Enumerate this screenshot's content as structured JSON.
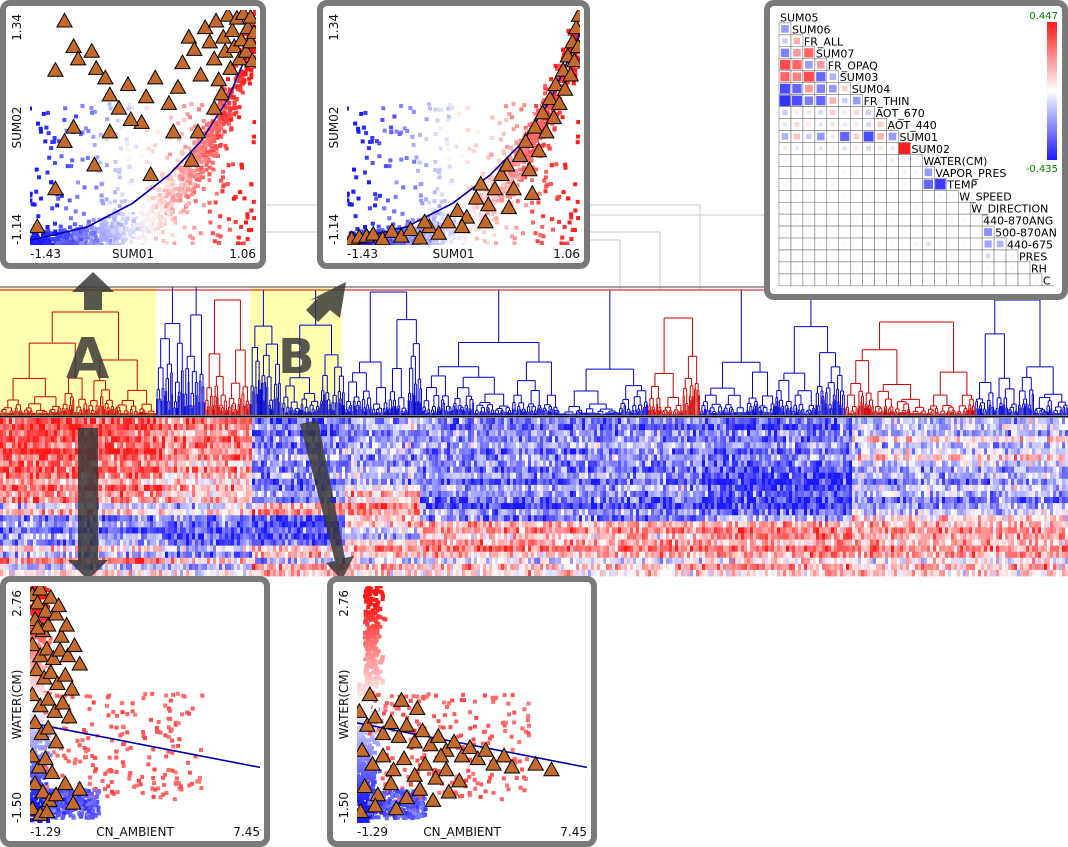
{
  "colors": {
    "high": "#ff1a1a",
    "low": "#1a1aff",
    "neutral": "#ffffff",
    "glyph": "#c46a2d",
    "fit_line": "#0000aa",
    "frame": "#7a7a7a",
    "highlight": "#ffffb0"
  },
  "selections": [
    {
      "label": "A"
    },
    {
      "label": "B"
    }
  ],
  "chart_data": [
    {
      "id": "scatter-A-top",
      "type": "scatter",
      "xlabel": "SUM01",
      "ylabel": "SUM02",
      "xlim": [
        -1.43,
        1.06
      ],
      "ylim": [
        -1.14,
        1.34
      ],
      "tick_labels": {
        "xmin": "-1.43",
        "xmax": "1.06",
        "ymin": "-1.14",
        "ymax": "1.34"
      },
      "selection": "A",
      "trend": "exponential",
      "trend_points": [
        [
          -1.43,
          -1.09
        ],
        [
          -0.8,
          -0.95
        ],
        [
          -0.3,
          -0.7
        ],
        [
          0.1,
          -0.4
        ],
        [
          0.45,
          -0.05
        ],
        [
          0.75,
          0.4
        ],
        [
          1.06,
          1.1
        ]
      ],
      "highlighted_points": [
        [
          -1.05,
          1.22
        ],
        [
          -0.95,
          0.95
        ],
        [
          -1.15,
          0.7
        ],
        [
          -0.9,
          0.82
        ],
        [
          -0.75,
          0.9
        ],
        [
          -0.7,
          0.72
        ],
        [
          -0.6,
          0.62
        ],
        [
          -0.55,
          0.44
        ],
        [
          -0.45,
          0.3
        ],
        [
          -0.35,
          0.55
        ],
        [
          -0.2,
          0.15
        ],
        [
          -0.15,
          0.42
        ],
        [
          -0.05,
          0.62
        ],
        [
          0.1,
          0.35
        ],
        [
          0.2,
          0.52
        ],
        [
          0.25,
          0.78
        ],
        [
          0.32,
          1.05
        ],
        [
          0.38,
          0.92
        ],
        [
          0.45,
          0.65
        ],
        [
          0.5,
          1.15
        ],
        [
          0.55,
          1.0
        ],
        [
          0.6,
          0.82
        ],
        [
          0.62,
          1.22
        ],
        [
          0.65,
          0.6
        ],
        [
          0.7,
          1.05
        ],
        [
          0.72,
          0.9
        ],
        [
          0.75,
          1.28
        ],
        [
          0.78,
          0.72
        ],
        [
          0.8,
          1.12
        ],
        [
          0.82,
          0.95
        ],
        [
          0.85,
          1.25
        ],
        [
          0.88,
          0.82
        ],
        [
          0.9,
          1.02
        ],
        [
          0.92,
          1.3
        ],
        [
          0.95,
          0.9
        ],
        [
          0.97,
          1.15
        ],
        [
          1.0,
          1.0
        ],
        [
          1.0,
          1.26
        ],
        [
          1.02,
          0.8
        ],
        [
          1.04,
          1.1
        ],
        [
          -1.35,
          -0.95
        ],
        [
          -1.15,
          -0.55
        ],
        [
          -1.05,
          -0.05
        ],
        [
          -0.95,
          0.1
        ],
        [
          -0.72,
          -0.3
        ],
        [
          -0.1,
          -0.4
        ],
        [
          0.35,
          -0.25
        ],
        [
          0.6,
          0.3
        ],
        [
          0.68,
          0.45
        ],
        [
          0.42,
          0.05
        ],
        [
          -0.55,
          0.05
        ],
        [
          -0.32,
          0.18
        ],
        [
          0.15,
          0.05
        ]
      ]
    },
    {
      "id": "scatter-B-top",
      "type": "scatter",
      "xlabel": "SUM01",
      "ylabel": "SUM02",
      "xlim": [
        -1.43,
        1.06
      ],
      "ylim": [
        -1.14,
        1.34
      ],
      "tick_labels": {
        "xmin": "-1.43",
        "xmax": "1.06",
        "ymin": "-1.14",
        "ymax": "1.34"
      },
      "selection": "B",
      "trend": "exponential",
      "trend_points": [
        [
          -1.43,
          -1.09
        ],
        [
          -0.8,
          -0.95
        ],
        [
          -0.3,
          -0.7
        ],
        [
          0.1,
          -0.4
        ],
        [
          0.45,
          -0.05
        ],
        [
          0.75,
          0.4
        ],
        [
          1.06,
          1.1
        ]
      ],
      "highlighted_points": [
        [
          -1.38,
          -1.08
        ],
        [
          -1.3,
          -1.06
        ],
        [
          -1.22,
          -1.05
        ],
        [
          -1.15,
          -1.03
        ],
        [
          -1.05,
          -1.08
        ],
        [
          -0.95,
          -1.0
        ],
        [
          -0.85,
          -1.05
        ],
        [
          -0.75,
          -0.98
        ],
        [
          -0.65,
          -1.07
        ],
        [
          -0.55,
          -0.95
        ],
        [
          -0.45,
          -1.02
        ],
        [
          -0.35,
          -0.9
        ],
        [
          -0.25,
          -0.78
        ],
        [
          -0.15,
          -0.85
        ],
        [
          -0.05,
          -0.65
        ],
        [
          0.0,
          -0.5
        ],
        [
          0.08,
          -0.72
        ],
        [
          0.15,
          -0.55
        ],
        [
          0.22,
          -0.4
        ],
        [
          0.28,
          -0.3
        ],
        [
          0.35,
          -0.55
        ],
        [
          0.42,
          -0.2
        ],
        [
          0.48,
          -0.05
        ],
        [
          0.52,
          -0.35
        ],
        [
          0.58,
          0.1
        ],
        [
          0.62,
          -0.15
        ],
        [
          0.66,
          0.25
        ],
        [
          0.7,
          0.05
        ],
        [
          0.74,
          0.4
        ],
        [
          0.78,
          0.2
        ],
        [
          0.8,
          0.55
        ],
        [
          0.84,
          0.35
        ],
        [
          0.88,
          0.7
        ],
        [
          0.9,
          0.5
        ],
        [
          0.93,
          0.85
        ],
        [
          0.96,
          0.65
        ],
        [
          0.98,
          1.0
        ],
        [
          1.0,
          0.8
        ],
        [
          1.02,
          1.15
        ],
        [
          1.04,
          0.95
        ],
        [
          1.05,
          1.28
        ],
        [
          -0.2,
          -0.95
        ],
        [
          0.05,
          -0.9
        ],
        [
          0.3,
          -0.75
        ],
        [
          -0.6,
          -0.9
        ],
        [
          0.55,
          -0.6
        ]
      ]
    },
    {
      "id": "scatter-A-bottom",
      "type": "scatter",
      "xlabel": "CN_AMBIENT",
      "ylabel": "WATER(CM)",
      "xlim": [
        -1.29,
        7.45
      ],
      "ylim": [
        -1.5,
        2.76
      ],
      "tick_labels": {
        "xmin": "-1.29",
        "xmax": "7.45",
        "ymin": "-1.50",
        "ymax": "2.76"
      },
      "selection": "A",
      "trend": "linear",
      "trend_points": [
        [
          -1.29,
          0.3
        ],
        [
          7.45,
          -0.5
        ]
      ],
      "highlighted_points": [
        [
          -1.2,
          2.6
        ],
        [
          -1.0,
          2.45
        ],
        [
          -0.9,
          2.7
        ],
        [
          -0.7,
          2.3
        ],
        [
          -0.5,
          2.55
        ],
        [
          -1.1,
          2.15
        ],
        [
          -0.8,
          1.95
        ],
        [
          -0.6,
          2.05
        ],
        [
          -0.3,
          2.25
        ],
        [
          -0.1,
          1.85
        ],
        [
          0.1,
          2.05
        ],
        [
          -1.2,
          1.7
        ],
        [
          -0.9,
          1.5
        ],
        [
          -0.65,
          1.62
        ],
        [
          -0.4,
          1.45
        ],
        [
          -0.15,
          1.6
        ],
        [
          0.15,
          1.5
        ],
        [
          0.4,
          1.68
        ],
        [
          0.6,
          1.35
        ],
        [
          -1.05,
          1.25
        ],
        [
          -0.75,
          1.1
        ],
        [
          -0.5,
          1.2
        ],
        [
          -0.25,
          1.0
        ],
        [
          0.05,
          1.15
        ],
        [
          0.3,
          0.9
        ],
        [
          -1.2,
          0.8
        ],
        [
          -0.9,
          0.6
        ],
        [
          -0.6,
          0.72
        ],
        [
          -0.35,
          0.5
        ],
        [
          -0.05,
          0.65
        ],
        [
          0.2,
          0.4
        ],
        [
          -1.1,
          0.3
        ],
        [
          -0.85,
          0.1
        ],
        [
          -0.6,
          0.2
        ],
        [
          -0.3,
          -0.05
        ],
        [
          -1.2,
          -0.3
        ],
        [
          -0.95,
          -0.5
        ],
        [
          -0.7,
          -0.35
        ],
        [
          -0.45,
          -0.6
        ],
        [
          -1.1,
          -0.8
        ],
        [
          -0.8,
          -0.95
        ],
        [
          -0.55,
          -1.1
        ],
        [
          -1.2,
          -1.25
        ],
        [
          -0.9,
          -1.35
        ],
        [
          -0.65,
          -1.3
        ],
        [
          -0.3,
          -1.0
        ],
        [
          0.05,
          -0.8
        ],
        [
          0.35,
          -1.15
        ],
        [
          0.6,
          -0.9
        ],
        [
          -1.0,
          2.0
        ],
        [
          -0.2,
          2.4
        ]
      ]
    },
    {
      "id": "scatter-B-bottom",
      "type": "scatter",
      "xlabel": "CN_AMBIENT",
      "ylabel": "WATER(CM)",
      "xlim": [
        -1.29,
        7.45
      ],
      "ylim": [
        -1.5,
        2.76
      ],
      "tick_labels": {
        "xmin": "-1.29",
        "xmax": "7.45",
        "ymin": "-1.50",
        "ymax": "2.76"
      },
      "selection": "B",
      "trend": "linear",
      "trend_points": [
        [
          -1.29,
          0.3
        ],
        [
          7.45,
          -0.5
        ]
      ],
      "highlighted_points": [
        [
          -1.2,
          0.5
        ],
        [
          -0.9,
          0.25
        ],
        [
          -0.6,
          0.4
        ],
        [
          -0.3,
          0.1
        ],
        [
          0.0,
          0.3
        ],
        [
          0.3,
          0.05
        ],
        [
          0.6,
          0.25
        ],
        [
          0.9,
          -0.05
        ],
        [
          1.2,
          0.15
        ],
        [
          1.5,
          -0.1
        ],
        [
          1.8,
          0.05
        ],
        [
          2.1,
          -0.2
        ],
        [
          2.4,
          -0.05
        ],
        [
          2.7,
          -0.3
        ],
        [
          3.0,
          -0.15
        ],
        [
          3.3,
          -0.35
        ],
        [
          3.6,
          -0.2
        ],
        [
          3.9,
          -0.45
        ],
        [
          4.3,
          -0.3
        ],
        [
          4.6,
          -0.5
        ],
        [
          -1.1,
          -0.2
        ],
        [
          -0.7,
          -0.45
        ],
        [
          -0.3,
          -0.3
        ],
        [
          0.1,
          -0.55
        ],
        [
          0.5,
          -0.35
        ],
        [
          0.9,
          -0.65
        ],
        [
          1.3,
          -0.45
        ],
        [
          1.7,
          -0.7
        ],
        [
          2.1,
          -0.55
        ],
        [
          2.6,
          -0.75
        ],
        [
          -1.0,
          -0.85
        ],
        [
          -0.5,
          -1.0
        ],
        [
          0.0,
          -0.8
        ],
        [
          0.6,
          -1.05
        ],
        [
          1.1,
          -0.9
        ],
        [
          1.6,
          -1.1
        ],
        [
          2.2,
          -0.95
        ],
        [
          -1.15,
          -1.3
        ],
        [
          -0.6,
          -1.2
        ],
        [
          5.5,
          -0.45
        ],
        [
          6.1,
          -0.55
        ],
        [
          0.4,
          0.7
        ],
        [
          1.0,
          0.55
        ],
        [
          -0.8,
          0.8
        ],
        [
          0.2,
          -1.25
        ],
        [
          1.9,
          -0.3
        ]
      ]
    }
  ],
  "correlation_matrix": {
    "variables": [
      "SUM05",
      "SUM06",
      "FR_ALL",
      "SUM07",
      "FR_OPAQ",
      "SUM03",
      "SUM04",
      "FR_THIN",
      "AOT_670",
      "AOT_440",
      "SUM01",
      "SUM02",
      "WATER(CM)",
      "VAPOR_PRES",
      "TEMP",
      "W_SPEED",
      "W_DIRECTION",
      "440-870ANG",
      "500-870AN",
      "440-675",
      "PRES",
      "RH",
      "C"
    ],
    "colorbar": {
      "max_label": "0.447",
      "min_label": "-0.435",
      "vmax": 0.447,
      "vmin": -0.435
    },
    "values": [
      [],
      [
        -0.2
      ],
      [
        -0.1,
        0.15
      ],
      [
        -0.25,
        0.2,
        0.3
      ],
      [
        0.35,
        0.3,
        -0.2,
        0.2
      ],
      [
        0.3,
        0.25,
        0.35,
        -0.3,
        -0.15
      ],
      [
        -0.35,
        -0.3,
        0.2,
        -0.25,
        -0.2,
        0.1
      ],
      [
        -0.4,
        -0.35,
        -0.25,
        -0.3,
        0.15,
        -0.1,
        -0.2
      ],
      [
        -0.1,
        0.05,
        -0.05,
        -0.08,
        0.1,
        0.05,
        0.08,
        -0.1
      ],
      [
        -0.05,
        0.08,
        0.05,
        -0.05,
        0.06,
        -0.04,
        0.05,
        -0.08,
        0.1
      ],
      [
        -0.15,
        0.12,
        -0.1,
        -0.2,
        0.05,
        -0.3,
        0.1,
        -0.35,
        0.15,
        -0.2
      ],
      [
        0.05,
        -0.04,
        0.03,
        -0.05,
        0.04,
        -0.06,
        0.05,
        -0.08,
        0.06,
        -0.05,
        0.44
      ],
      [
        0.03,
        -0.03,
        0.02,
        -0.02,
        0.03,
        -0.02,
        0.02,
        -0.03,
        0.04,
        -0.05,
        0.03,
        0.02
      ],
      [
        0.02,
        -0.02,
        0.03,
        -0.02,
        0.02,
        -0.03,
        0.02,
        -0.02,
        0.03,
        -0.02,
        0.04,
        -0.03,
        -0.2
      ],
      [
        0.02,
        -0.03,
        0.02,
        -0.02,
        0.03,
        -0.02,
        0.02,
        -0.03,
        0.02,
        -0.02,
        0.03,
        -0.02,
        -0.3,
        -0.38
      ],
      [
        0.01,
        -0.02,
        0.02,
        -0.01,
        0.02,
        -0.02,
        0.01,
        -0.02,
        0.02,
        -0.01,
        0.02,
        -0.01,
        0.02,
        -0.03,
        0.02
      ],
      [
        0.02,
        -0.01,
        0.01,
        -0.02,
        0.01,
        -0.02,
        0.02,
        -0.01,
        0.02,
        -0.02,
        0.01,
        -0.03,
        0.02,
        0.03,
        -0.02,
        0.02
      ],
      [
        0.01,
        -0.02,
        0.02,
        -0.01,
        0.02,
        -0.01,
        0.02,
        -0.02,
        0.01,
        -0.02,
        0.02,
        -0.01,
        0.02,
        -0.02,
        0.03,
        -0.02,
        0.01
      ],
      [
        0.02,
        -0.02,
        0.01,
        -0.02,
        0.02,
        -0.01,
        0.01,
        -0.02,
        0.02,
        -0.01,
        0.02,
        -0.02,
        0.01,
        -0.02,
        0.02,
        -0.01,
        0.02,
        -0.22
      ],
      [
        0.01,
        -0.01,
        0.02,
        -0.02,
        0.01,
        -0.02,
        0.02,
        -0.01,
        0.01,
        -0.02,
        0.01,
        -0.03,
        -0.06,
        0.02,
        -0.01,
        0.02,
        -0.01,
        -0.18,
        -0.15
      ],
      [
        0.02,
        -0.02,
        0.01,
        -0.01,
        0.02,
        -0.02,
        0.01,
        -0.02,
        0.02,
        -0.01,
        0.02,
        -0.01,
        0.02,
        -0.02,
        0.03,
        -0.02,
        0.01,
        -0.08,
        0.02,
        0.03
      ],
      [
        0.01,
        -0.02,
        0.02,
        -0.01,
        0.02,
        -0.01,
        0.02,
        -0.02,
        0.01,
        -0.02,
        0.02,
        -0.01,
        0.03,
        -0.02,
        0.02,
        -0.01,
        0.02,
        -0.02,
        0.01,
        -0.02,
        0.02
      ],
      [
        0.02,
        -0.01,
        0.01,
        -0.02,
        0.01,
        -0.02,
        0.02,
        -0.01,
        0.02,
        -0.02,
        0.01,
        -0.02,
        0.02,
        -0.01,
        0.02,
        -0.02,
        0.01,
        -0.02,
        0.02,
        -0.01,
        0.02,
        0.03
      ]
    ]
  }
}
